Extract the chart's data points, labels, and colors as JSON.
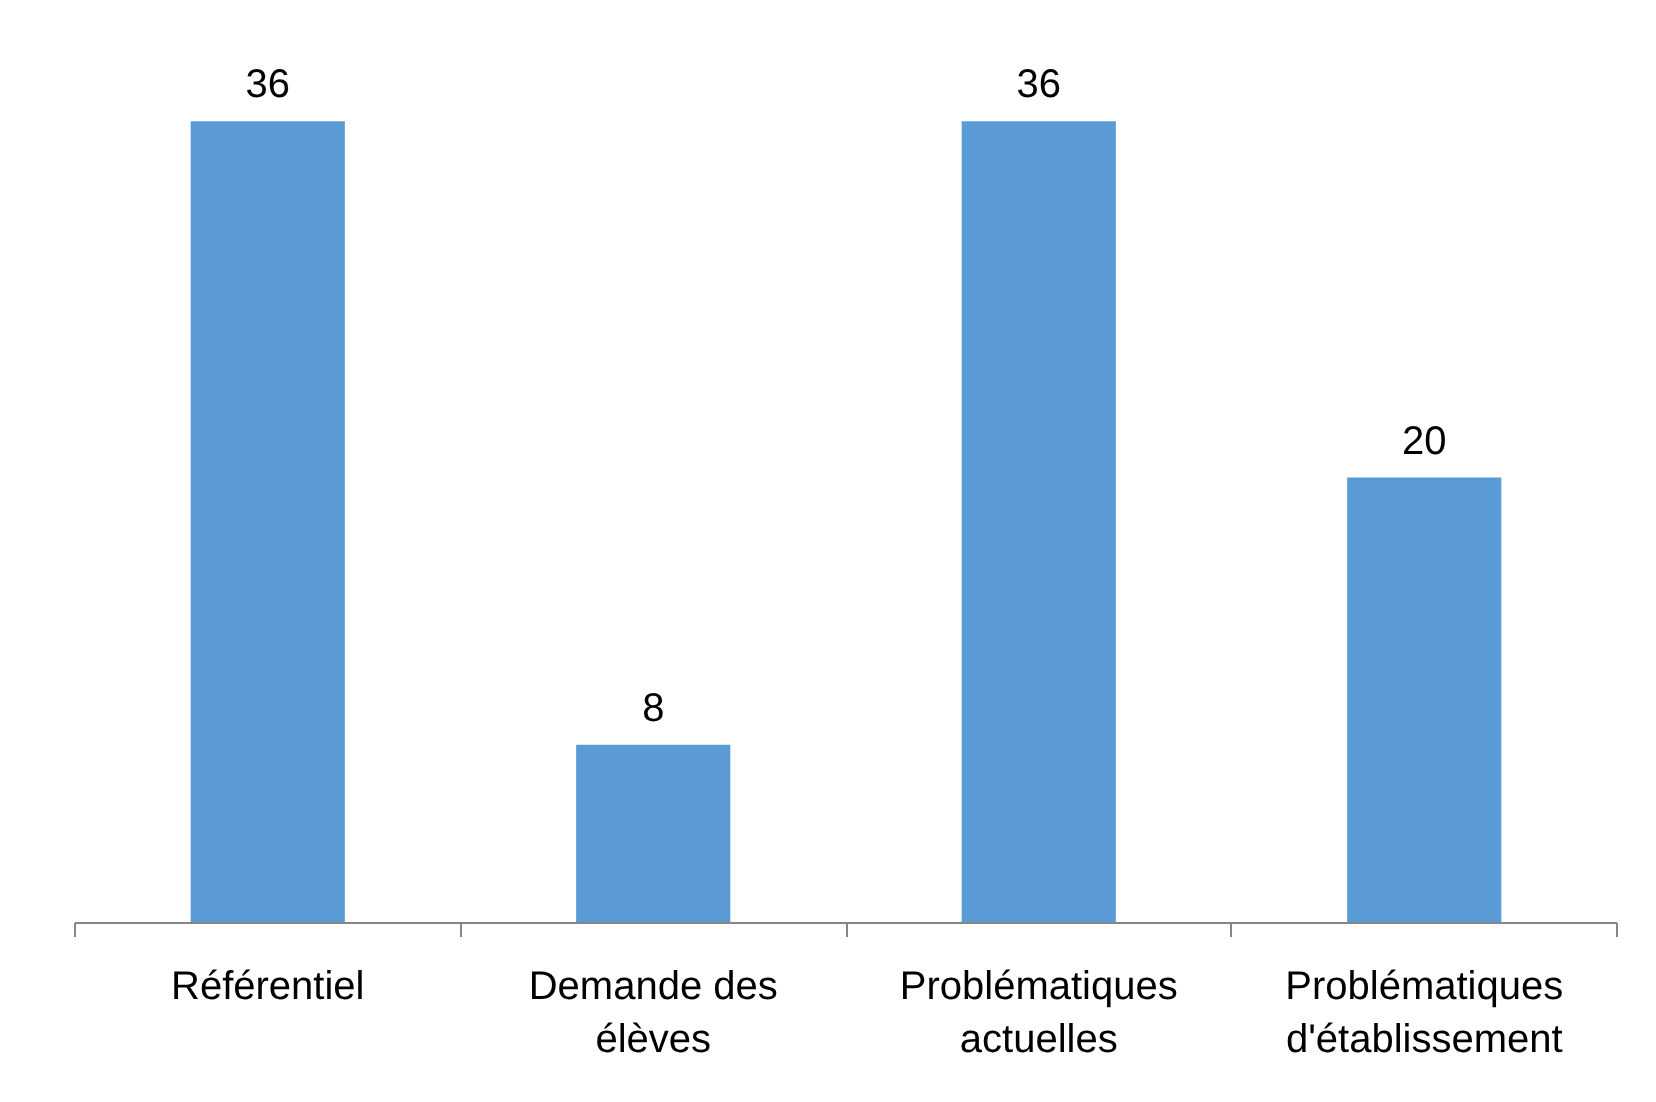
{
  "chart_data": {
    "type": "bar",
    "categories": [
      "Référentiel",
      "Demande des élèves",
      "Problématiques actuelles",
      "Problématiques d'établissement"
    ],
    "values": [
      36,
      8,
      36,
      20
    ],
    "color": "#5b9bd5",
    "data_labels": true
  }
}
